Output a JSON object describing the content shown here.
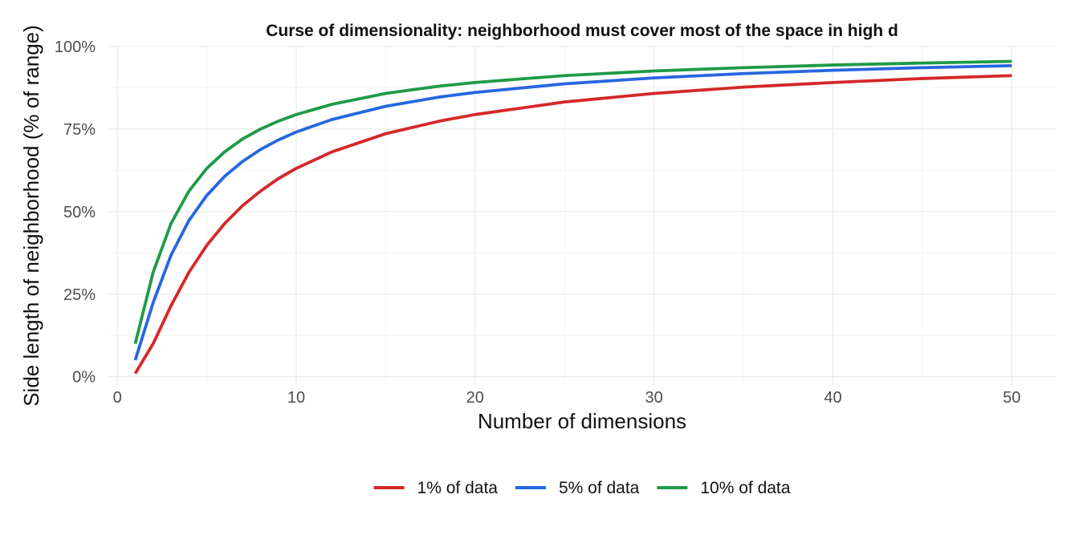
{
  "chart_data": {
    "type": "line",
    "title": "Curse of dimensionality: neighborhood must cover most of the space in high d",
    "xlabel": "Number of dimensions",
    "ylabel": "Side length of neighborhood (% of range)",
    "xlim": [
      -0.5,
      52.5
    ],
    "ylim": [
      -2.5,
      100
    ],
    "x_ticks": [
      0,
      10,
      20,
      30,
      40,
      50
    ],
    "x_tick_labels": [
      "0",
      "10",
      "20",
      "30",
      "40",
      "50"
    ],
    "y_ticks": [
      0,
      25,
      50,
      75,
      100
    ],
    "y_tick_labels": [
      "0%",
      "25%",
      "50%",
      "75%",
      "100%"
    ],
    "grid": true,
    "legend_position": "bottom",
    "x": [
      1,
      2,
      3,
      4,
      5,
      6,
      7,
      8,
      9,
      10,
      12,
      15,
      18,
      20,
      25,
      30,
      35,
      40,
      45,
      50
    ],
    "series": [
      {
        "name": "1% of data",
        "color": "#d62728",
        "values": [
          1.0,
          10.0,
          21.5,
          31.6,
          39.8,
          46.4,
          51.8,
          56.2,
          60.0,
          63.1,
          68.1,
          73.6,
          77.4,
          79.4,
          83.2,
          85.8,
          87.7,
          89.1,
          90.3,
          91.2
        ]
      },
      {
        "name": "5% of data",
        "color": "#2666e0",
        "values": [
          5.0,
          22.4,
          36.8,
          47.3,
          54.9,
          60.7,
          65.2,
          68.8,
          71.7,
          74.1,
          77.9,
          81.9,
          84.7,
          86.1,
          88.7,
          90.5,
          91.8,
          92.8,
          93.6,
          94.2
        ]
      },
      {
        "name": "10% of data",
        "color": "#1f9a48",
        "values": [
          10.0,
          31.6,
          46.4,
          56.2,
          63.1,
          68.1,
          72.0,
          75.0,
          77.4,
          79.4,
          82.5,
          85.8,
          88.0,
          89.1,
          91.2,
          92.6,
          93.6,
          94.4,
          95.0,
          95.5
        ]
      }
    ]
  }
}
